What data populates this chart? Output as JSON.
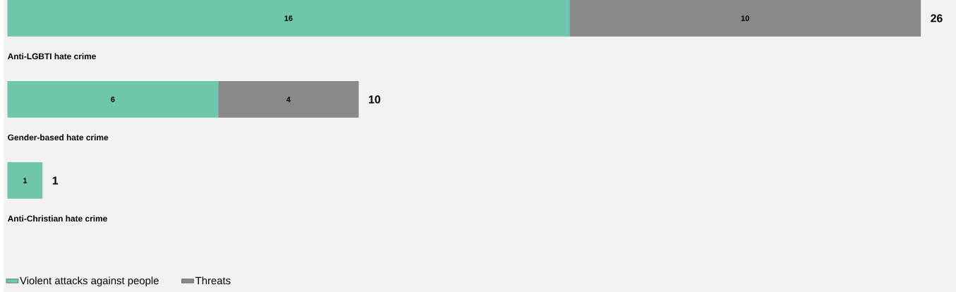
{
  "chart_data": {
    "type": "bar",
    "orientation": "horizontal",
    "stacked": true,
    "categories": [
      "Anti-LGBTI hate crime",
      "Gender-based hate crime",
      "Anti-Christian hate crime"
    ],
    "series": [
      {
        "name": "Violent attacks against people",
        "color": "#70c6ac",
        "values": [
          16,
          6,
          1
        ]
      },
      {
        "name": "Threats",
        "color": "#898989",
        "values": [
          10,
          4,
          null
        ]
      }
    ],
    "data_labels": true,
    "totals": [
      "26",
      "10",
      "1"
    ],
    "legend": "bottom left"
  }
}
